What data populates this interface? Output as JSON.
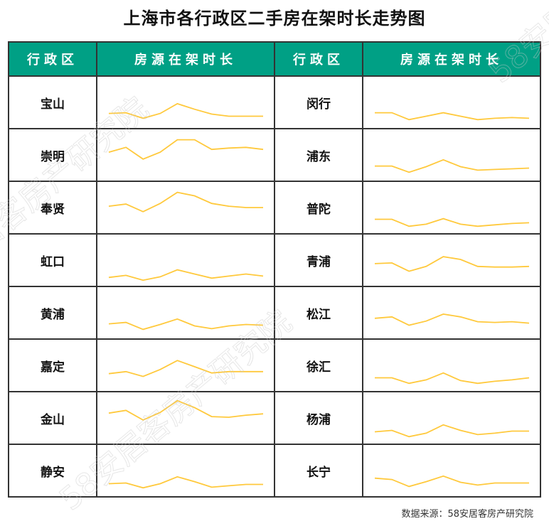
{
  "title": "上海市各行政区二手房在架时长走势图",
  "headers": [
    "行政区",
    "房源在架时长",
    "行政区",
    "房源在架时长"
  ],
  "source": "数据来源：58安居客房产研究院",
  "watermark": "58安居客房产研究院",
  "colors": {
    "header": "#00A085",
    "line": "#FFC93C"
  },
  "chart_data": {
    "type": "line",
    "title": "上海市各行政区二手房在架时长走势图",
    "note_units": "",
    "ylim": [
      0,
      74
    ],
    "grid": false,
    "series": [
      {
        "name": "宝山",
        "values": [
          21,
          22,
          14,
          21,
          35,
          27,
          20,
          17,
          17,
          17
        ]
      },
      {
        "name": "闵行",
        "values": [
          22,
          22,
          12,
          17,
          22,
          17,
          12,
          14,
          15,
          14
        ]
      },
      {
        "name": "崇明",
        "values": [
          41,
          48,
          31,
          41,
          59,
          59,
          45,
          47,
          48,
          45
        ]
      },
      {
        "name": "浦东",
        "values": [
          21,
          21,
          12,
          20,
          30,
          20,
          15,
          16,
          17,
          18
        ]
      },
      {
        "name": "奉贤",
        "values": [
          39,
          42,
          31,
          43,
          59,
          54,
          43,
          39,
          37,
          37
        ]
      },
      {
        "name": "普陀",
        "values": [
          20,
          20,
          10,
          13,
          21,
          13,
          10,
          12,
          14,
          15
        ]
      },
      {
        "name": "虹口",
        "values": [
          12,
          15,
          8,
          13,
          23,
          17,
          11,
          14,
          17,
          14
        ]
      },
      {
        "name": "青浦",
        "values": [
          32,
          33,
          21,
          28,
          42,
          38,
          28,
          27,
          27,
          28
        ]
      },
      {
        "name": "黄浦",
        "values": [
          21,
          23,
          13,
          20,
          28,
          18,
          14,
          18,
          20,
          19
        ]
      },
      {
        "name": "松江",
        "values": [
          29,
          31,
          19,
          25,
          35,
          31,
          24,
          23,
          24,
          22
        ]
      },
      {
        "name": "嘉定",
        "values": [
          25,
          28,
          21,
          31,
          44,
          35,
          26,
          28,
          28,
          28
        ]
      },
      {
        "name": "徐汇",
        "values": [
          19,
          19,
          11,
          16,
          26,
          15,
          11,
          14,
          16,
          19
        ]
      },
      {
        "name": "金山",
        "values": [
          44,
          48,
          34,
          45,
          62,
          52,
          39,
          38,
          41,
          43
        ]
      },
      {
        "name": "杨浦",
        "values": [
          17,
          19,
          10,
          15,
          27,
          19,
          13,
          15,
          18,
          18
        ]
      },
      {
        "name": "静安",
        "values": [
          18,
          19,
          12,
          18,
          28,
          21,
          13,
          15,
          17,
          17
        ]
      },
      {
        "name": "长宁",
        "values": [
          26,
          24,
          14,
          21,
          29,
          20,
          16,
          19,
          19,
          19
        ]
      }
    ]
  }
}
